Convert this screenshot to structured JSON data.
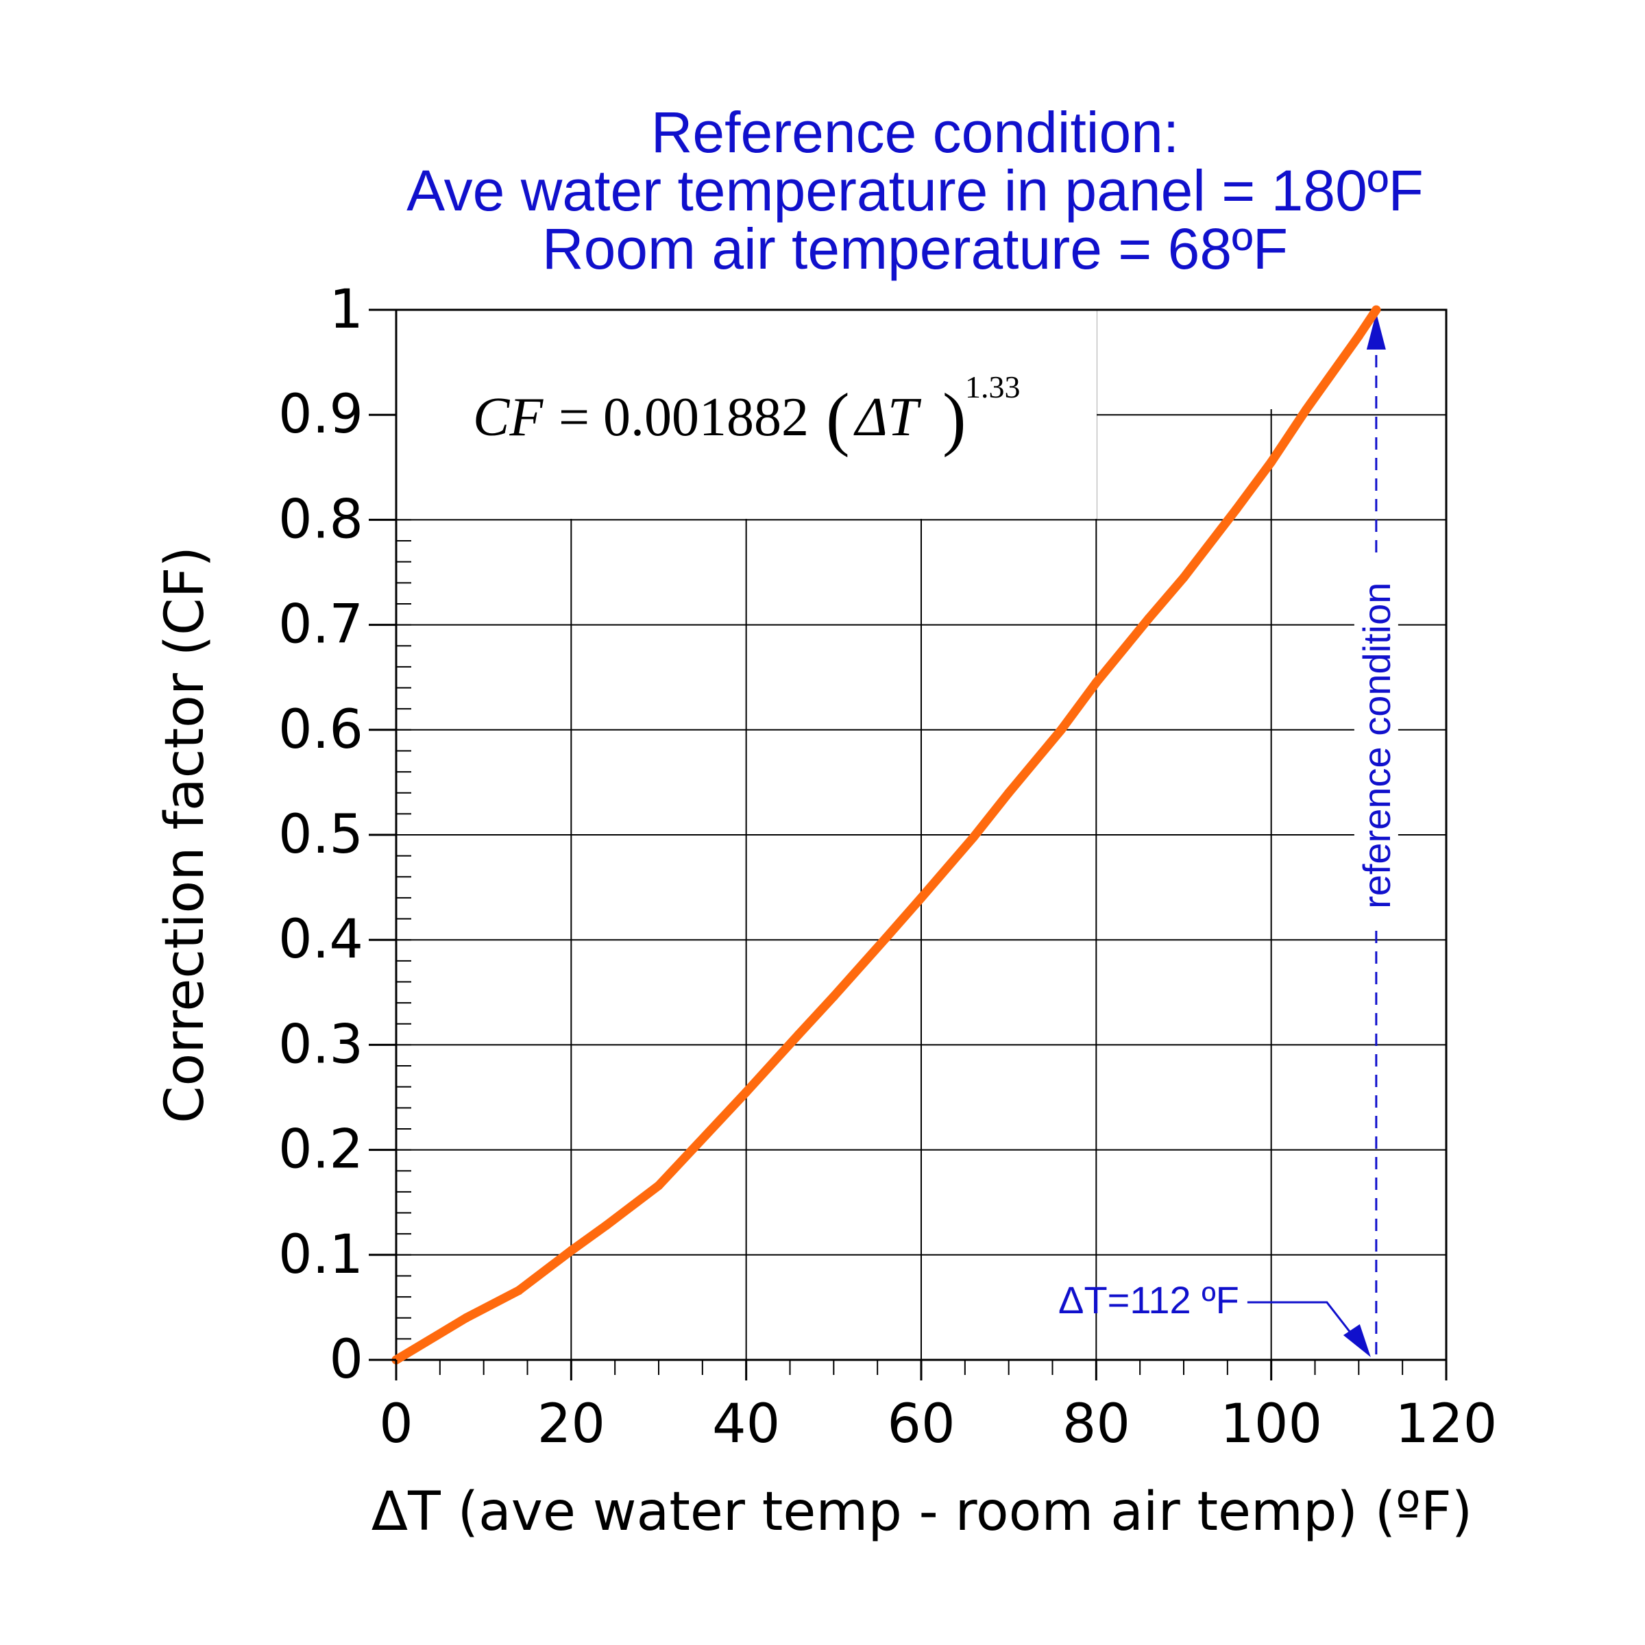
{
  "chart_data": {
    "type": "line",
    "title_lines": [
      "Reference condition:",
      "Ave water temperature in panel = 180ºF",
      "Room air temperature = 68ºF"
    ],
    "xlabel": "ΔT (ave water temp - room air temp) (ºF)",
    "ylabel": "Correction factor (CF)",
    "xlim": [
      0,
      120
    ],
    "ylim": [
      0,
      1
    ],
    "x_ticks": [
      0,
      20,
      40,
      60,
      80,
      100,
      120
    ],
    "y_ticks": [
      0,
      0.1,
      0.2,
      0.3,
      0.4,
      0.5,
      0.6,
      0.7,
      0.8,
      0.9,
      1
    ],
    "x_tick_labels": [
      "0",
      "20",
      "40",
      "60",
      "80",
      "100",
      "120"
    ],
    "y_tick_labels": [
      "0",
      "0.1",
      "0.2",
      "0.3",
      "0.4",
      "0.5",
      "0.6",
      "0.7",
      "0.8",
      "0.9",
      "1"
    ],
    "grid": true,
    "formula": {
      "lhs": "CF",
      "coefficient": "0.001882",
      "variable": "ΔT",
      "exponent": "1.33"
    },
    "series": [
      {
        "color": "#ff6a0e",
        "x": [
          0,
          8,
          14,
          20,
          24,
          30,
          40,
          46,
          50,
          56,
          60,
          66,
          70,
          76,
          80,
          86,
          90,
          96,
          100,
          104,
          110,
          112
        ],
        "y": [
          0,
          0.04,
          0.066,
          0.104,
          0.128,
          0.166,
          0.255,
          0.31,
          0.346,
          0.402,
          0.44,
          0.498,
          0.54,
          0.6,
          0.645,
          0.706,
          0.745,
          0.81,
          0.855,
          0.905,
          0.975,
          1.0
        ]
      }
    ],
    "annotation": {
      "x": 112,
      "label": "ΔT=112 ºF",
      "vertical_label": "reference condition",
      "color": "#1010cc"
    }
  }
}
